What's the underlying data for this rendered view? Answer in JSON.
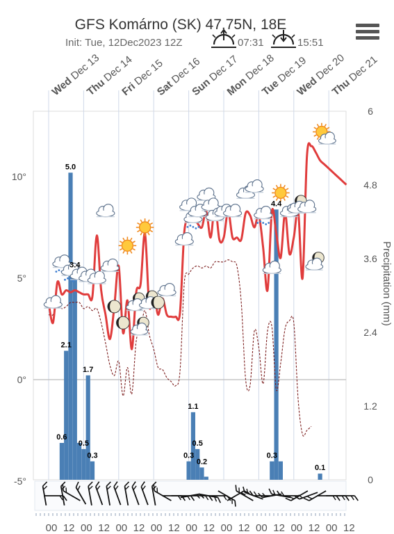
{
  "chart_data": {
    "type": "line",
    "title": "GFS Komárno (SK) 47.75N, 18E",
    "init_label": "Init: Tue, 12Dec2023 12Z",
    "sunrise": "07:31",
    "sunset": "15:51",
    "days": [
      {
        "dow": "Wed",
        "date": "Dec 13"
      },
      {
        "dow": "Thu",
        "date": "Dec 14"
      },
      {
        "dow": "Fri",
        "date": "Dec 15"
      },
      {
        "dow": "Sat",
        "date": "Dec 16"
      },
      {
        "dow": "Sun",
        "date": "Dec 17"
      },
      {
        "dow": "Mon",
        "date": "Dec 18"
      },
      {
        "dow": "Tue",
        "date": "Dec 19"
      },
      {
        "dow": "Wed",
        "date": "Dec 20"
      },
      {
        "dow": "Thu",
        "date": "Dec 21"
      }
    ],
    "hour_ticks": [
      "00",
      "12",
      "00",
      "12",
      "00",
      "12",
      "00",
      "12",
      "00",
      "12",
      "00",
      "12",
      "00",
      "12",
      "00",
      "12",
      "00",
      "12"
    ],
    "x_range_hours": [
      0,
      204
    ],
    "y_left": {
      "range": [
        -5,
        13.8
      ],
      "ticks": [
        -5,
        0,
        5,
        10
      ],
      "tick_labels": [
        "-5°",
        "0°",
        "5°",
        "10°"
      ]
    },
    "y_right": {
      "label": "Precipitation (mm)",
      "range": [
        0,
        6
      ],
      "ticks": [
        0,
        1.2,
        2.4,
        3.6,
        4.8,
        6
      ],
      "tick_labels": [
        "0",
        "1.2",
        "2.4",
        "3.6",
        "4.8",
        "6"
      ]
    },
    "temperature": {
      "color": "#e03c3c",
      "x": [
        0,
        3,
        6,
        9,
        12,
        15,
        18,
        21,
        24,
        27,
        30,
        33,
        36,
        39,
        42,
        45,
        48,
        51,
        54,
        57,
        60,
        63,
        66,
        69,
        72,
        75,
        78,
        81,
        84,
        87,
        90,
        93,
        96,
        99,
        102,
        105,
        108,
        111,
        114,
        117,
        120,
        123,
        126,
        129,
        132,
        135,
        138,
        141,
        144,
        147,
        150,
        153,
        156,
        159,
        162,
        165,
        168,
        171,
        174,
        177,
        180,
        183,
        186,
        189,
        192,
        195,
        198,
        201,
        204
      ],
      "y": [
        3.8,
        2.8,
        4.8,
        4.2,
        4.4,
        4.3,
        4.4,
        4.3,
        4.2,
        4.2,
        4.1,
        7.1,
        4.4,
        3.2,
        2.0,
        3.6,
        5.6,
        2.3,
        3.9,
        1.5,
        4.3,
        4.7,
        7.2,
        3.6,
        4.3,
        3.2,
        4.0,
        3.2,
        3.1,
        3.1,
        3.3,
        7.3,
        7.8,
        8.0,
        7.7,
        7.5,
        8.3,
        7.0,
        8.6,
        6.9,
        7.0,
        8.3,
        7.0,
        7.0,
        6.9,
        8.2,
        8.1,
        7.5,
        8.1,
        6.5,
        4.4,
        8.3,
        7.2,
        6.0,
        8.2,
        6.2,
        7.0,
        8.3,
        5.0,
        11.0,
        11.5,
        11.2,
        10.8,
        10.6,
        10.4,
        10.2,
        10.0,
        9.8,
        9.6
      ]
    },
    "dewpoint": {
      "color": "#7a1a1a",
      "style": "dashed",
      "x": [
        0,
        3,
        6,
        9,
        12,
        15,
        18,
        21,
        24,
        27,
        30,
        33,
        36,
        39,
        42,
        45,
        48,
        51,
        54,
        57,
        60,
        63,
        66,
        69,
        72,
        75,
        78,
        81,
        84,
        87,
        90,
        93,
        96,
        99,
        102,
        105,
        108,
        111,
        114,
        117,
        120,
        123,
        126,
        129,
        132,
        135,
        138,
        141,
        144,
        147,
        150,
        153,
        156,
        159,
        162,
        165,
        168,
        171,
        174,
        177,
        180
      ],
      "y": [
        3.2,
        3.2,
        3.7,
        3.5,
        3.6,
        3.8,
        3.8,
        3.8,
        3.5,
        3.6,
        3.4,
        3.5,
        2.8,
        1.8,
        0.7,
        0.2,
        0.9,
        -0.8,
        0.6,
        -0.7,
        1.9,
        2.5,
        3.4,
        2.2,
        1.5,
        0.6,
        0.5,
        0.1,
        -0.1,
        -0.3,
        0.4,
        4.8,
        5.2,
        5.5,
        5.6,
        5.5,
        5.6,
        5.5,
        5.8,
        5.8,
        5.8,
        5.9,
        5.8,
        5.6,
        3.8,
        0.0,
        -0.3,
        2.4,
        1.6,
        -0.2,
        2.4,
        2.6,
        -0.5,
        0.8,
        2.5,
        2.9,
        2.8,
        -1.0,
        -2.7,
        -2.5,
        -2.3
      ]
    },
    "precipitation": {
      "color": "#4a7fb5",
      "x": [
        9,
        12,
        15,
        18,
        21,
        24,
        27,
        30,
        96,
        99,
        102,
        105,
        108,
        153,
        156,
        159,
        186
      ],
      "values": [
        0.6,
        2.1,
        5.0,
        3.4,
        0.6,
        0.5,
        1.7,
        0.3,
        0.3,
        1.1,
        0.5,
        0.2,
        0.05,
        0.3,
        4.4,
        0.3,
        0.1
      ],
      "labels": [
        {
          "x": 9,
          "value": 0.6,
          "text": "0.6"
        },
        {
          "x": 12,
          "value": 2.1,
          "text": "2.1"
        },
        {
          "x": 15,
          "value": 5.0,
          "text": "5.0"
        },
        {
          "x": 18,
          "value": 3.4,
          "text": "3.4"
        },
        {
          "x": 24,
          "value": 0.5,
          "text": "0.5"
        },
        {
          "x": 27,
          "value": 1.7,
          "text": "1.7"
        },
        {
          "x": 30,
          "value": 0.3,
          "text": "0.3"
        },
        {
          "x": 96,
          "value": 0.3,
          "text": "0.3"
        },
        {
          "x": 99,
          "value": 1.1,
          "text": "1.1"
        },
        {
          "x": 102,
          "value": 0.5,
          "text": "0.5"
        },
        {
          "x": 105,
          "value": 0.2,
          "text": "0.2"
        },
        {
          "x": 153,
          "value": 0.3,
          "text": "0.3"
        },
        {
          "x": 156,
          "value": 4.4,
          "text": "4.4"
        },
        {
          "x": 186,
          "value": 0.1,
          "text": "0.1"
        }
      ]
    },
    "weather_icons": [
      {
        "x": 3,
        "temp": 3.8,
        "icon": "cloud-icon"
      },
      {
        "x": 9,
        "temp": 5.8,
        "icon": "cloud-rain-icon"
      },
      {
        "x": 15,
        "temp": 5.4,
        "icon": "cloud-rain-icon"
      },
      {
        "x": 21,
        "temp": 5.2,
        "icon": "cloud-icon"
      },
      {
        "x": 27,
        "temp": 5.1,
        "icon": "cloud-icon"
      },
      {
        "x": 33,
        "temp": 5.0,
        "icon": "cloud-icon"
      },
      {
        "x": 39,
        "temp": 8.3,
        "icon": "cloud-icon"
      },
      {
        "x": 42,
        "temp": 5.6,
        "icon": "cloud-icon"
      },
      {
        "x": 45,
        "temp": 3.6,
        "icon": "moon-icon"
      },
      {
        "x": 51,
        "temp": 2.8,
        "icon": "moon-icon"
      },
      {
        "x": 54,
        "temp": 6.6,
        "icon": "sun-icon"
      },
      {
        "x": 60,
        "temp": 3.8,
        "icon": "moon-cloud-icon"
      },
      {
        "x": 63,
        "temp": 2.6,
        "icon": "moon-cloud-icon"
      },
      {
        "x": 66,
        "temp": 7.5,
        "icon": "sun-icon"
      },
      {
        "x": 69,
        "temp": 3.9,
        "icon": "moon-cloud-icon"
      },
      {
        "x": 75,
        "temp": 3.8,
        "icon": "moon-icon"
      },
      {
        "x": 81,
        "temp": 4.4,
        "icon": "cloud-icon"
      },
      {
        "x": 93,
        "temp": 6.9,
        "icon": "cloud-icon"
      },
      {
        "x": 96,
        "temp": 8.6,
        "icon": "cloud-icon"
      },
      {
        "x": 99,
        "temp": 8.0,
        "icon": "cloud-rain-icon"
      },
      {
        "x": 102,
        "temp": 8.3,
        "icon": "cloud-icon"
      },
      {
        "x": 108,
        "temp": 9.1,
        "icon": "cloud-icon"
      },
      {
        "x": 111,
        "temp": 8.6,
        "icon": "cloud-icon"
      },
      {
        "x": 114,
        "temp": 8.1,
        "icon": "cloud-icon"
      },
      {
        "x": 120,
        "temp": 8.3,
        "icon": "cloud-icon"
      },
      {
        "x": 126,
        "temp": 8.3,
        "icon": "cloud-icon"
      },
      {
        "x": 135,
        "temp": 9.2,
        "icon": "cloud-icon"
      },
      {
        "x": 141,
        "temp": 9.5,
        "icon": "cloud-icon"
      },
      {
        "x": 147,
        "temp": 8.2,
        "icon": "cloud-rain-icon"
      },
      {
        "x": 153,
        "temp": 5.5,
        "icon": "cloud-icon"
      },
      {
        "x": 159,
        "temp": 9.2,
        "icon": "sun-icon"
      },
      {
        "x": 165,
        "temp": 8.3,
        "icon": "cloud-icon"
      },
      {
        "x": 171,
        "temp": 8.6,
        "icon": "moon-cloud-icon"
      },
      {
        "x": 177,
        "temp": 8.5,
        "icon": "cloud-icon"
      },
      {
        "x": 183,
        "temp": 5.8,
        "icon": "moon-cloud-icon"
      },
      {
        "x": 189,
        "temp": 12.0,
        "icon": "sun-cloud-icon"
      }
    ],
    "wind_directions_deg": [
      350,
      90,
      350,
      300,
      330,
      350,
      340,
      350,
      340,
      350,
      340,
      340,
      350,
      300,
      90,
      90,
      80,
      90,
      100,
      90,
      120,
      60,
      300,
      290,
      270,
      260,
      280,
      270,
      240,
      250,
      240,
      90,
      90,
      90
    ]
  }
}
